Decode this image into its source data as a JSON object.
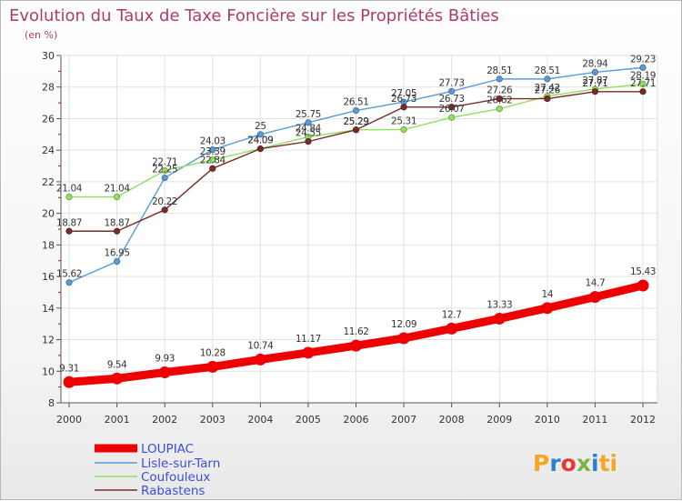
{
  "chart_data": {
    "type": "line",
    "title": "Evolution du Taux de Taxe Foncière sur les Propriétés Bâties",
    "subtitle": "(en %)",
    "xlabel": "",
    "ylabel": "",
    "categories": [
      "2000",
      "2001",
      "2002",
      "2003",
      "2004",
      "2005",
      "2006",
      "2007",
      "2008",
      "2009",
      "2010",
      "2011",
      "2012"
    ],
    "ylim": [
      8,
      30
    ],
    "yticks": [
      "8",
      "10",
      "12",
      "14",
      "16",
      "18",
      "20",
      "22",
      "24",
      "26",
      "28",
      "30"
    ],
    "grid": true,
    "series": [
      {
        "name": "LOUPIAC",
        "color": "#ee0000",
        "values": [
          9.31,
          9.54,
          9.93,
          10.28,
          10.74,
          11.17,
          11.62,
          12.09,
          12.7,
          13.33,
          14,
          14.7,
          15.43
        ],
        "labels": [
          "9.31",
          "9.54",
          "9.93",
          "10.28",
          "10.74",
          "11.17",
          "11.62",
          "12.09",
          "12.7",
          "13.33",
          "14",
          "14.7",
          "15.43"
        ]
      },
      {
        "name": "Lisle-sur-Tarn",
        "color": "#5b9bd5",
        "values": [
          15.62,
          16.95,
          22.25,
          24.03,
          25,
          25.75,
          26.51,
          27.05,
          27.73,
          28.51,
          28.51,
          28.94,
          29.23
        ],
        "labels": [
          "15.62",
          "16.95",
          "22.25",
          "24.03",
          "25",
          "25.75",
          "26.51",
          "27.05",
          "27.73",
          "28.51",
          "28.51",
          "28.94",
          "29.23"
        ]
      },
      {
        "name": "Coufouleux",
        "color": "#90e060",
        "values": [
          21.04,
          21.04,
          22.71,
          23.39,
          24.09,
          24.84,
          25.29,
          25.31,
          26.07,
          26.62,
          27.42,
          27.87,
          28.19
        ],
        "labels": [
          "21.04",
          "21.04",
          "22.71",
          "23.39",
          "24.09",
          "24.84",
          "25.29",
          "25.31",
          "26.07",
          "26.62",
          "27.42",
          "27.87",
          "28.19"
        ]
      },
      {
        "name": "Rabastens",
        "color": "#7b2a2a",
        "values": [
          18.87,
          18.87,
          20.22,
          22.84,
          24.09,
          24.55,
          25.29,
          26.73,
          26.73,
          27.26,
          27.26,
          27.71,
          27.71
        ],
        "labels": [
          "18.87",
          "18.87",
          "20.22",
          "22.84",
          "24.09",
          "24.55",
          "25.29",
          "26.73",
          "26.73",
          "27.26",
          "27.26",
          "27.71",
          "27.71"
        ]
      }
    ]
  },
  "brand": {
    "prefix": "Pro",
    "x": "x",
    "suffix": "iti",
    "colors": [
      "#f5a623",
      "#2a7fd4",
      "#e53935",
      "#7cb342",
      "#2a7fd4",
      "#f5a623"
    ]
  }
}
